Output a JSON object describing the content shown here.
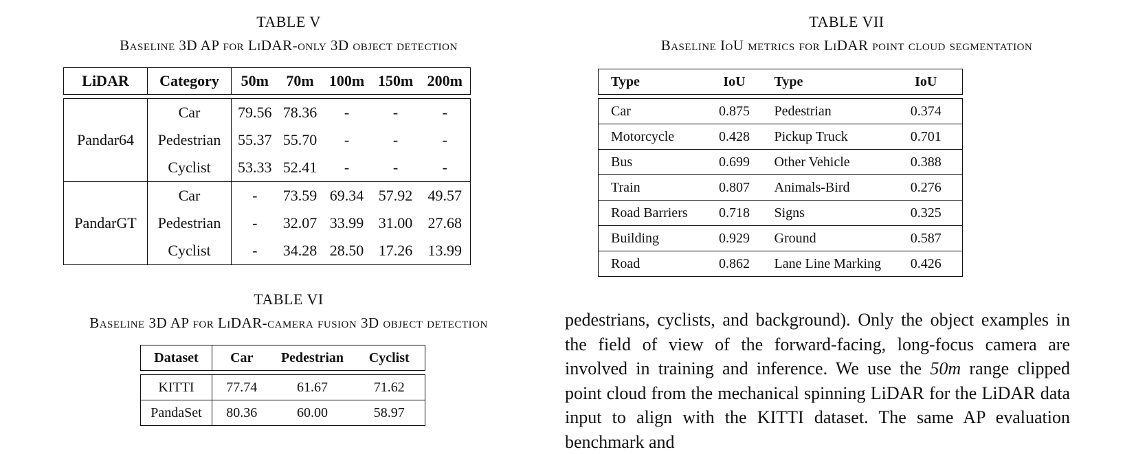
{
  "table5": {
    "label": "TABLE V",
    "caption": "Baseline 3D AP for LiDAR-only 3D object detection",
    "headers": [
      "LiDAR",
      "Category",
      "50m",
      "70m",
      "100m",
      "150m",
      "200m"
    ],
    "groups": [
      {
        "lidar": "Pandar64",
        "rows": [
          [
            "Car",
            "79.56",
            "78.36",
            "-",
            "-",
            "-"
          ],
          [
            "Pedestrian",
            "55.37",
            "55.70",
            "-",
            "-",
            "-"
          ],
          [
            "Cyclist",
            "53.33",
            "52.41",
            "-",
            "-",
            "-"
          ]
        ]
      },
      {
        "lidar": "PandarGT",
        "rows": [
          [
            "Car",
            "-",
            "73.59",
            "69.34",
            "57.92",
            "49.57"
          ],
          [
            "Pedestrian",
            "-",
            "32.07",
            "33.99",
            "31.00",
            "27.68"
          ],
          [
            "Cyclist",
            "-",
            "34.28",
            "28.50",
            "17.26",
            "13.99"
          ]
        ]
      }
    ]
  },
  "table6": {
    "label": "TABLE VI",
    "caption": "Baseline 3D AP for LiDAR-camera fusion 3D object detection",
    "headers": [
      "Dataset",
      "Car",
      "Pedestrian",
      "Cyclist"
    ],
    "rows": [
      [
        "KITTI",
        "77.74",
        "61.67",
        "71.62"
      ],
      [
        "PandaSet",
        "80.36",
        "60.00",
        "58.97"
      ]
    ]
  },
  "table7": {
    "label": "TABLE VII",
    "caption": "Baseline IoU metrics for LiDAR point cloud segmentation",
    "headers": [
      "Type",
      "IoU",
      "Type",
      "IoU"
    ],
    "rows": [
      [
        "Car",
        "0.875",
        "Pedestrian",
        "0.374"
      ],
      [
        "Motorcycle",
        "0.428",
        "Pickup Truck",
        "0.701"
      ],
      [
        "Bus",
        "0.699",
        "Other Vehicle",
        "0.388"
      ],
      [
        "Train",
        "0.807",
        "Animals-Bird",
        "0.276"
      ],
      [
        "Road Barriers",
        "0.718",
        "Signs",
        "0.325"
      ],
      [
        "Building",
        "0.929",
        "Ground",
        "0.587"
      ],
      [
        "Road",
        "0.862",
        "Lane Line Marking",
        "0.426"
      ]
    ]
  },
  "body": {
    "text_a": "pedestrians, cyclists, and background). Only the object examples in the field of view of the forward-facing, long-focus camera are involved in training and inference. We use the ",
    "math": "50m",
    "text_b": " range clipped point cloud from the mechanical spinning LiDAR for the LiDAR data input to align with the KITTI dataset. The same AP evaluation benchmark and"
  }
}
